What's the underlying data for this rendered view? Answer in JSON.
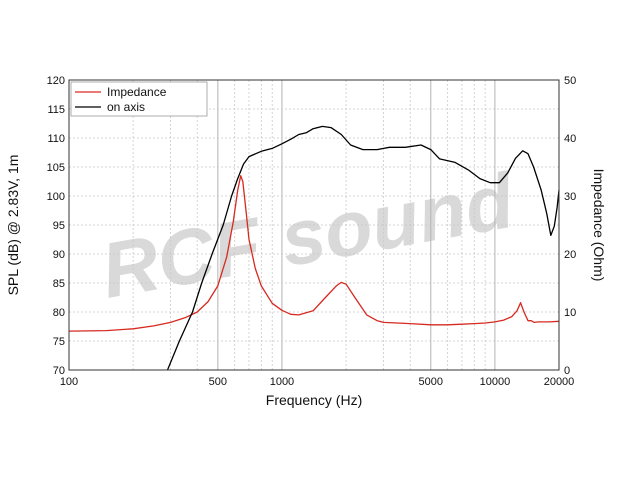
{
  "chart_data": {
    "type": "line",
    "xlabel": "Frequency (Hz)",
    "ylabel": "SPL (dB) @ 2.83V, 1m",
    "y2label": "Impedance (Ohm)",
    "x_scale": "log",
    "xlim": [
      100,
      20000
    ],
    "ylim": [
      70,
      120
    ],
    "y2lim": [
      0,
      50
    ],
    "grid": true,
    "legend_position": "top-left",
    "watermark": "RCF sound",
    "x_tick_labels": [
      {
        "value": 100,
        "label": "100"
      },
      {
        "value": 500,
        "label": "500"
      },
      {
        "value": 1000,
        "label": "1000"
      },
      {
        "value": 5000,
        "label": "5000"
      },
      {
        "value": 10000,
        "label": "10000"
      },
      {
        "value": 20000,
        "label": "20000"
      }
    ],
    "y_ticks": [
      70,
      75,
      80,
      85,
      90,
      95,
      100,
      105,
      110,
      115,
      120
    ],
    "y2_ticks": [
      0,
      10,
      20,
      30,
      40,
      50
    ],
    "series": [
      {
        "name": "Impedance",
        "axis": "right",
        "color": "#d62a20",
        "points": [
          [
            100,
            6.7
          ],
          [
            150,
            6.8
          ],
          [
            200,
            7.1
          ],
          [
            250,
            7.6
          ],
          [
            300,
            8.2
          ],
          [
            350,
            9.0
          ],
          [
            400,
            10.0
          ],
          [
            450,
            11.8
          ],
          [
            500,
            14.5
          ],
          [
            550,
            19.5
          ],
          [
            590,
            25.5
          ],
          [
            620,
            31.0
          ],
          [
            640,
            33.5
          ],
          [
            655,
            32.5
          ],
          [
            680,
            27.0
          ],
          [
            700,
            22.5
          ],
          [
            750,
            17.5
          ],
          [
            800,
            14.5
          ],
          [
            900,
            11.5
          ],
          [
            1000,
            10.3
          ],
          [
            1100,
            9.6
          ],
          [
            1200,
            9.5
          ],
          [
            1400,
            10.2
          ],
          [
            1600,
            12.5
          ],
          [
            1800,
            14.5
          ],
          [
            1900,
            15.1
          ],
          [
            2000,
            14.8
          ],
          [
            2200,
            12.5
          ],
          [
            2500,
            9.5
          ],
          [
            2800,
            8.5
          ],
          [
            3000,
            8.2
          ],
          [
            4000,
            8.0
          ],
          [
            5000,
            7.8
          ],
          [
            6000,
            7.8
          ],
          [
            7000,
            7.9
          ],
          [
            8000,
            8.0
          ],
          [
            9000,
            8.1
          ],
          [
            10000,
            8.3
          ],
          [
            11000,
            8.6
          ],
          [
            12000,
            9.2
          ],
          [
            12700,
            10.2
          ],
          [
            13200,
            11.6
          ],
          [
            13700,
            10.0
          ],
          [
            14300,
            8.5
          ],
          [
            14800,
            8.5
          ],
          [
            15300,
            8.2
          ],
          [
            16000,
            8.3
          ],
          [
            18000,
            8.3
          ],
          [
            20000,
            8.4
          ]
        ]
      },
      {
        "name": "on axis",
        "axis": "left",
        "color": "#000000",
        "points": [
          [
            290,
            70.0
          ],
          [
            330,
            75.0
          ],
          [
            380,
            80.0
          ],
          [
            420,
            85.0
          ],
          [
            470,
            90.0
          ],
          [
            530,
            95.0
          ],
          [
            580,
            100.0
          ],
          [
            620,
            103.0
          ],
          [
            660,
            105.5
          ],
          [
            700,
            106.8
          ],
          [
            800,
            107.7
          ],
          [
            900,
            108.2
          ],
          [
            1000,
            109.0
          ],
          [
            1100,
            109.8
          ],
          [
            1200,
            110.6
          ],
          [
            1300,
            110.9
          ],
          [
            1400,
            111.6
          ],
          [
            1550,
            112.0
          ],
          [
            1700,
            111.8
          ],
          [
            1900,
            110.6
          ],
          [
            2100,
            108.8
          ],
          [
            2400,
            108.0
          ],
          [
            2800,
            108.0
          ],
          [
            3200,
            108.4
          ],
          [
            3800,
            108.4
          ],
          [
            4500,
            108.8
          ],
          [
            5000,
            108.0
          ],
          [
            5500,
            106.4
          ],
          [
            6500,
            105.8
          ],
          [
            7500,
            104.5
          ],
          [
            8500,
            103.0
          ],
          [
            9500,
            102.3
          ],
          [
            10500,
            102.3
          ],
          [
            11500,
            104.0
          ],
          [
            12500,
            106.5
          ],
          [
            13500,
            107.8
          ],
          [
            14300,
            107.3
          ],
          [
            15200,
            105.0
          ],
          [
            16500,
            101.0
          ],
          [
            17500,
            97.0
          ],
          [
            18300,
            93.2
          ],
          [
            19000,
            94.8
          ],
          [
            19600,
            98.0
          ],
          [
            20000,
            101.0
          ]
        ]
      }
    ]
  }
}
